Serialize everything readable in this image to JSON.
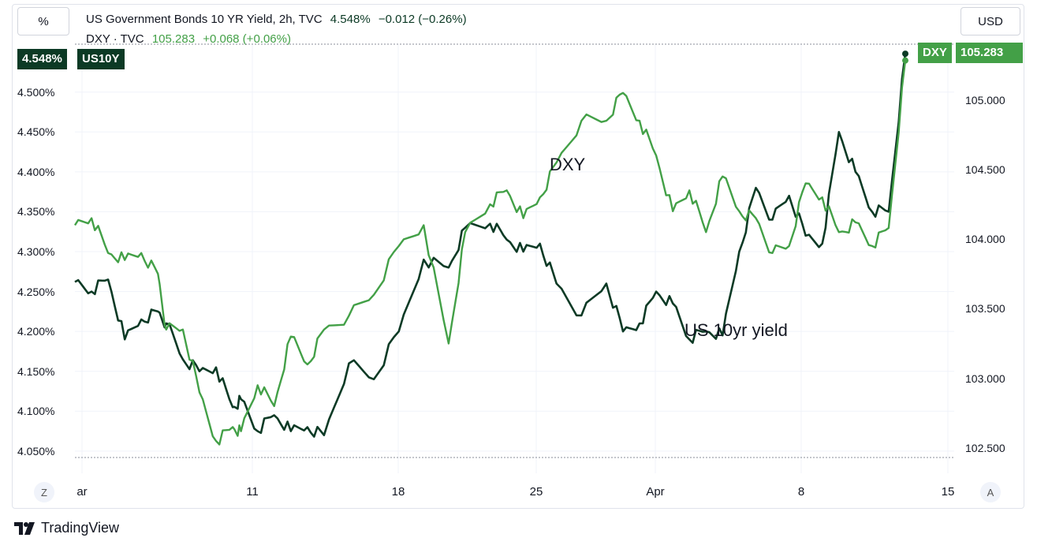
{
  "toolbar": {
    "percent_button": "%",
    "currency_button": "USD"
  },
  "legend": {
    "row1": {
      "title": "US Government Bonds 10 YR Yield, 2h, TVC",
      "value": "4.548%",
      "change": "−0.012 (−0.26%)"
    },
    "row2": {
      "title": "DXY · TVC",
      "value": "105.283",
      "change": "+0.068 (+0.06%)"
    }
  },
  "badges": {
    "left_value": "4.548%",
    "left_symbol": "US10Y",
    "right_symbol": "DXY",
    "right_value": "105.283"
  },
  "corner": {
    "left": "Z",
    "right": "A"
  },
  "brand": {
    "name": "TradingView"
  },
  "colors": {
    "us10y": "#0c3a25",
    "dxy": "#43a047",
    "grid": "#f0f3fa"
  },
  "chart_data": {
    "type": "line",
    "annotations": [
      "DXY",
      "US 10yr yield"
    ],
    "x_tick_labels": [
      "ar",
      "11",
      "18",
      "25",
      "Apr",
      "8",
      "15"
    ],
    "y_left": {
      "ticks": [
        "4.500%",
        "4.450%",
        "4.400%",
        "4.350%",
        "4.300%",
        "4.250%",
        "4.200%",
        "4.150%",
        "4.100%",
        "4.050%"
      ],
      "range": [
        4.04,
        4.56
      ]
    },
    "y_right": {
      "ticks": [
        "105.000",
        "104.500",
        "104.000",
        "103.500",
        "103.000",
        "102.500"
      ],
      "range": [
        102.42,
        105.4
      ]
    },
    "series": [
      {
        "name": "US10Y",
        "axis": "left",
        "x": [
          0,
          0.02,
          0.04,
          0.06,
          0.08,
          0.1,
          0.11,
          0.13,
          0.15,
          0.17,
          0.19,
          0.2,
          0.22,
          0.24,
          0.26,
          0.28,
          0.3,
          0.33,
          0.36,
          0.39,
          0.42,
          0.45,
          0.47,
          0.5,
          0.52,
          0.54,
          0.56,
          0.58,
          0.61,
          0.64,
          0.66,
          0.68,
          0.7,
          0.72,
          0.74,
          0.76,
          0.78,
          0.8,
          0.82,
          0.84,
          0.86,
          0.88,
          0.9,
          0.92,
          0.94,
          0.96,
          0.98,
          1.0
        ],
        "values": [
          4.262,
          4.25,
          4.265,
          4.19,
          4.215,
          4.225,
          4.21,
          4.165,
          4.15,
          4.155,
          4.105,
          4.115,
          4.075,
          4.095,
          4.075,
          4.08,
          4.07,
          4.16,
          4.14,
          4.2,
          4.29,
          4.28,
          4.33,
          4.335,
          4.315,
          4.3,
          4.31,
          4.26,
          4.22,
          4.26,
          4.2,
          4.21,
          4.25,
          4.235,
          4.19,
          4.2,
          4.195,
          4.3,
          4.38,
          4.34,
          4.37,
          4.32,
          4.31,
          4.45,
          4.4,
          4.35,
          4.35,
          4.548
        ]
      },
      {
        "name": "DXY",
        "axis": "right",
        "x": [
          0,
          0.02,
          0.04,
          0.06,
          0.08,
          0.1,
          0.11,
          0.13,
          0.15,
          0.17,
          0.19,
          0.2,
          0.22,
          0.24,
          0.26,
          0.28,
          0.3,
          0.33,
          0.36,
          0.39,
          0.42,
          0.45,
          0.47,
          0.5,
          0.52,
          0.54,
          0.56,
          0.58,
          0.61,
          0.64,
          0.66,
          0.68,
          0.7,
          0.72,
          0.74,
          0.76,
          0.78,
          0.8,
          0.82,
          0.84,
          0.86,
          0.88,
          0.9,
          0.92,
          0.94,
          0.96,
          0.98,
          1.0
        ],
        "values": [
          104.1,
          104.15,
          103.9,
          103.85,
          103.9,
          103.75,
          103.35,
          103.35,
          102.9,
          102.55,
          102.65,
          102.62,
          102.95,
          102.8,
          103.3,
          103.1,
          103.35,
          103.45,
          103.6,
          103.95,
          104.1,
          103.25,
          104.05,
          104.25,
          104.35,
          104.15,
          104.3,
          104.55,
          104.85,
          104.85,
          105.05,
          104.85,
          104.6,
          104.2,
          104.35,
          104.05,
          104.45,
          104.2,
          104.15,
          103.9,
          103.95,
          104.4,
          104.3,
          104.05,
          104.12,
          103.95,
          104.08,
          105.283
        ]
      }
    ],
    "last": {
      "US10Y": 4.548,
      "DXY": 105.283
    }
  }
}
